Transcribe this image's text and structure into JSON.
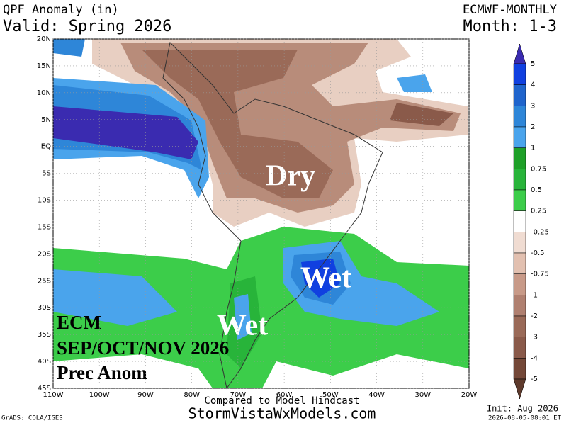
{
  "header": {
    "title": "QPF Anomaly (in)",
    "valid": "Valid: Spring 2026",
    "model": "ECMWF-MONTHLY",
    "months": "Month: 1-3"
  },
  "map": {
    "lat_labels": [
      "20N",
      "15N",
      "10N",
      "5N",
      "EQ",
      "5S",
      "10S",
      "15S",
      "20S",
      "25S",
      "30S",
      "35S",
      "40S",
      "45S"
    ],
    "lon_labels": [
      "110W",
      "100W",
      "90W",
      "80W",
      "70W",
      "60W",
      "50W",
      "40W",
      "30W",
      "20W"
    ],
    "annotations": {
      "dry": "Dry",
      "wet_brazil": "Wet",
      "wet_andes": "Wet",
      "model": "ECM",
      "season": "SEP/OCT/NOV 2026",
      "field": "Prec Anom"
    }
  },
  "colorbar": {
    "labels": [
      "5",
      "4",
      "3",
      "2",
      "1",
      "0.75",
      "0.5",
      "0.25",
      "-0.25",
      "-0.5",
      "-0.75",
      "-1",
      "-2",
      "-3",
      "-4",
      "-5"
    ],
    "colors": [
      "#3a2bb0",
      "#1040e0",
      "#1f64cc",
      "#2e86d8",
      "#4aa4ec",
      "#1ea028",
      "#28b43a",
      "#3ccd4a",
      "#ffffff",
      "#f0dcd2",
      "#e2c0b0",
      "#c89a88",
      "#b08070",
      "#9a6a58",
      "#8a5a4a",
      "#744838",
      "#5e3a2c"
    ]
  },
  "footer": {
    "hindcast": "Compared to Model Hindcast",
    "site": "StormVistaWxModels.com",
    "init": "Init: Aug 2026",
    "grads": "GrADS: COLA/IGES",
    "stamp": "2026-08-05-08:01 ET"
  }
}
